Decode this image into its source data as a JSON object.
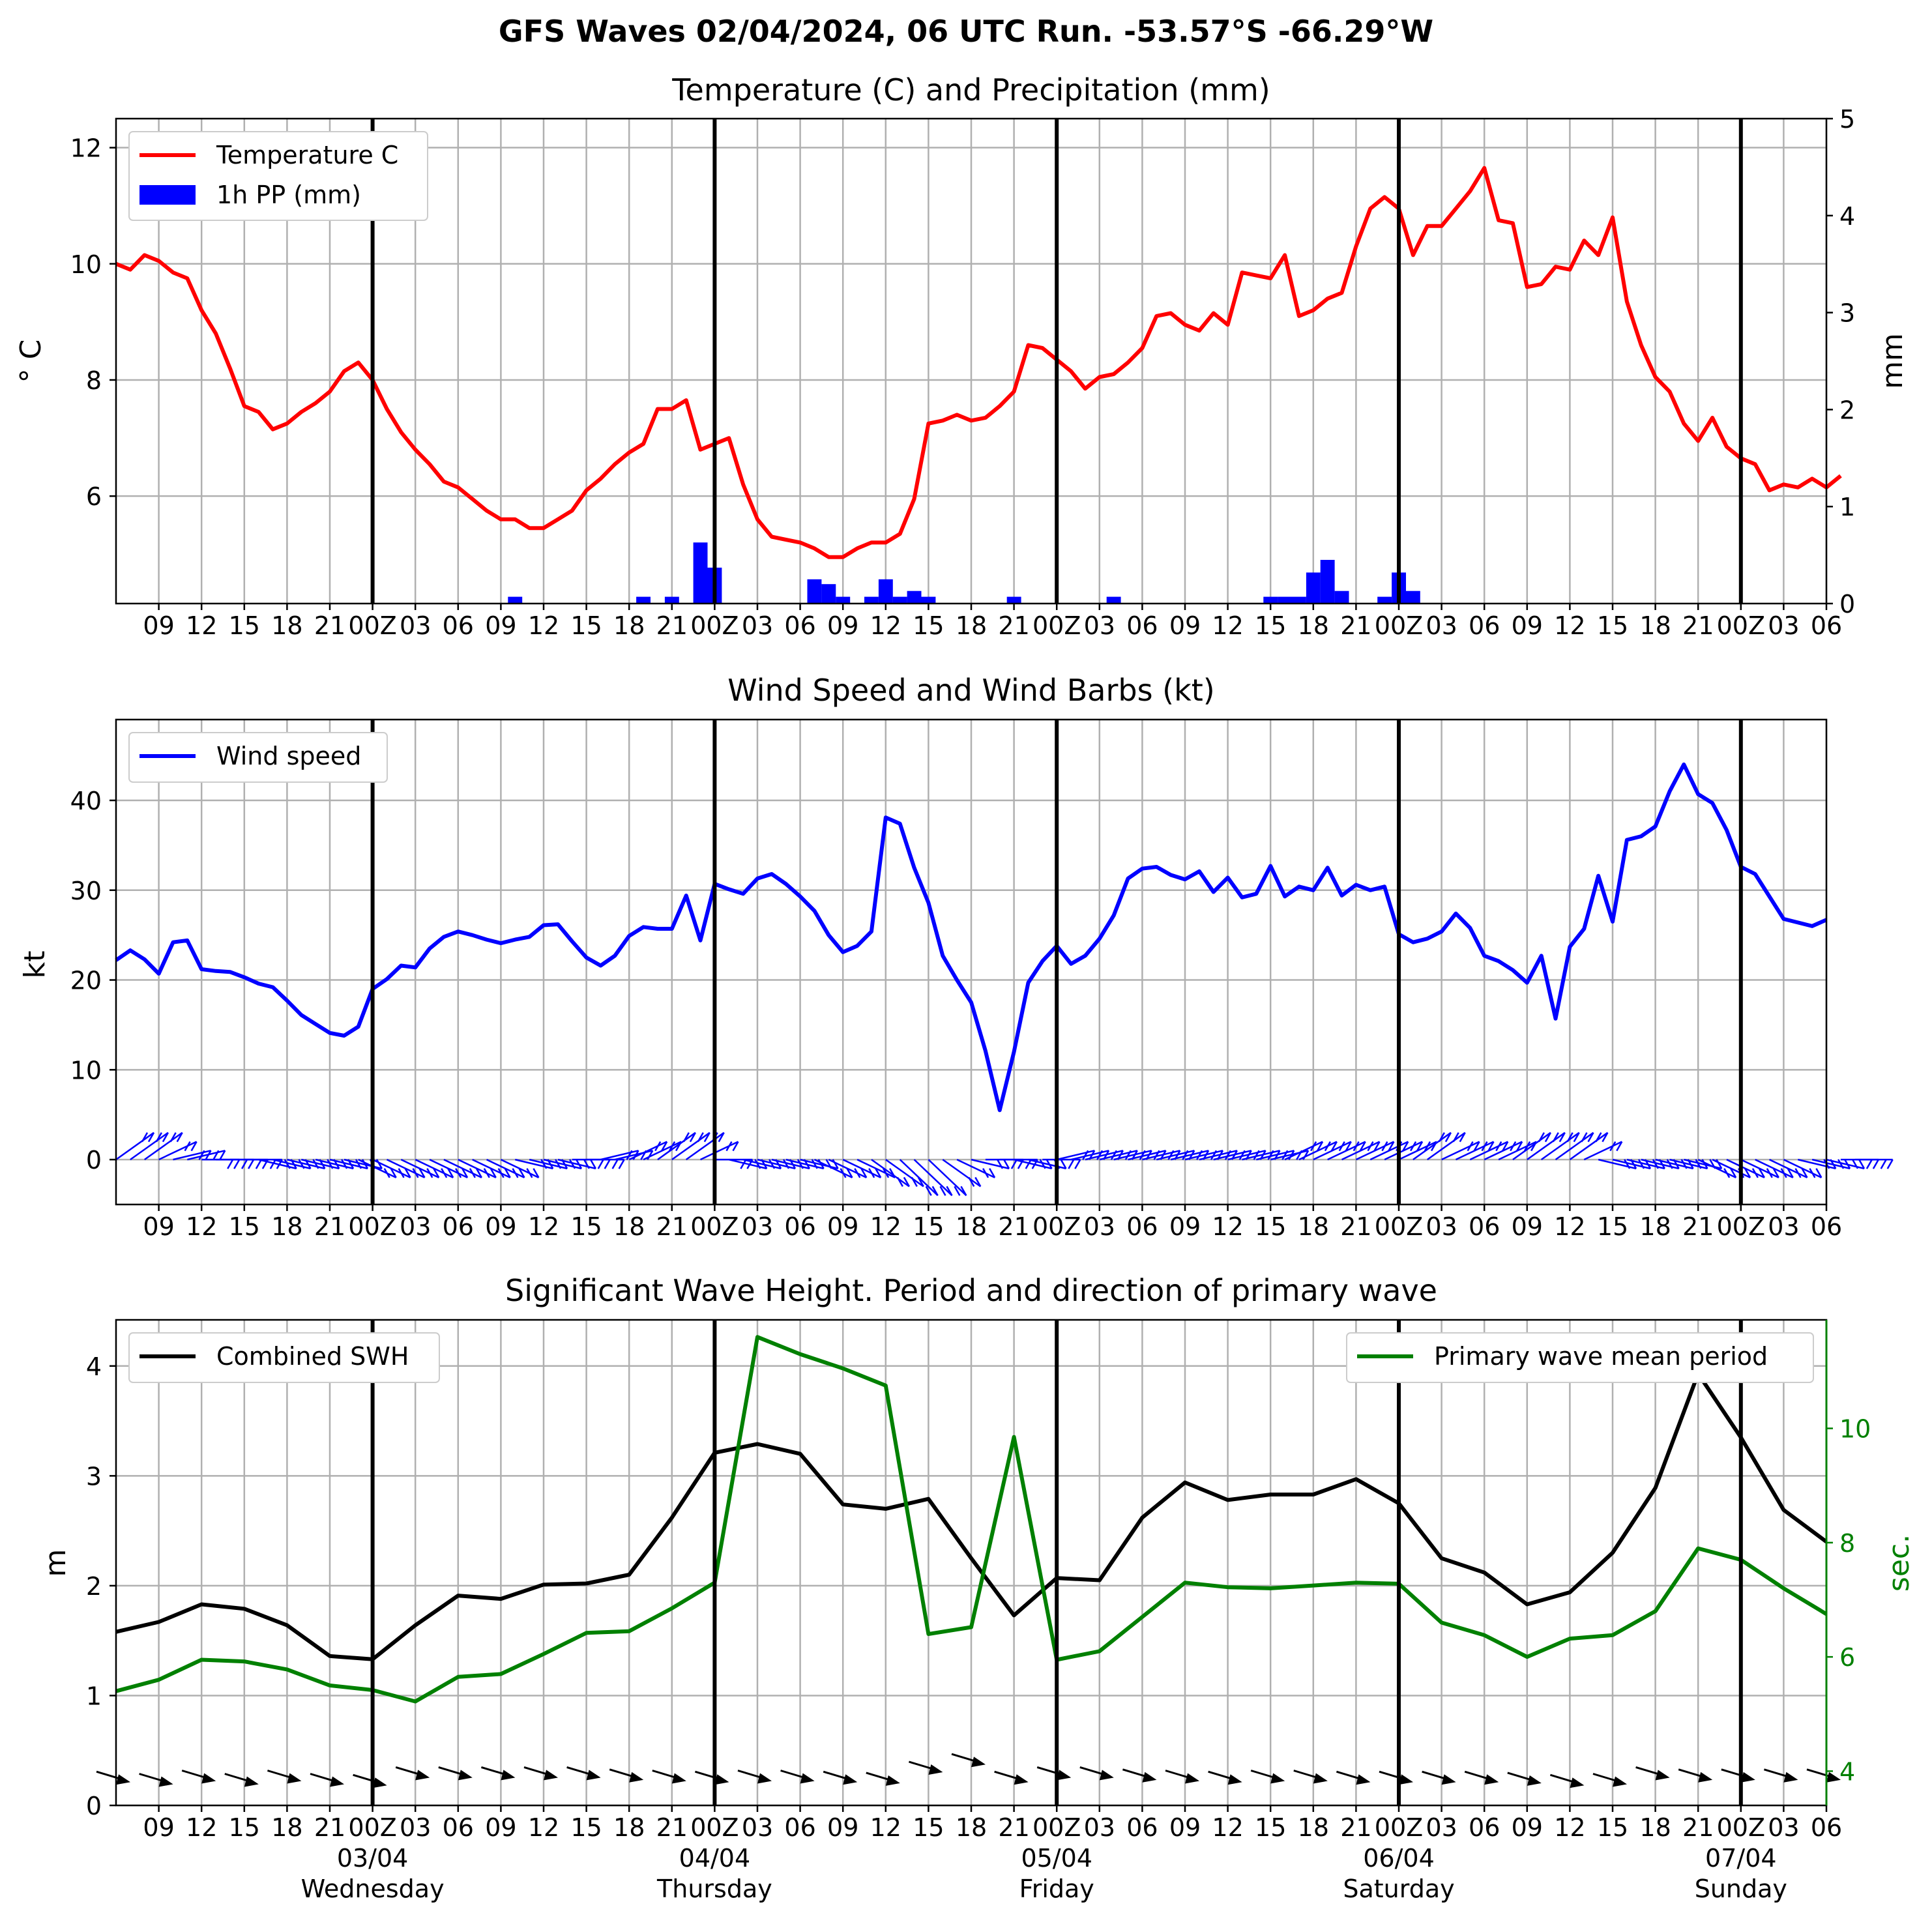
{
  "suptitle": "GFS Waves 02/04/2024, 06 UTC Run. -53.57°S -66.29°W",
  "colors": {
    "temperature": "#ff0000",
    "precip": "#0000ff",
    "wind": "#0000ff",
    "swh": "#000000",
    "period": "#008000",
    "grid": "#b0b0b0",
    "day_line": "#000000"
  },
  "hour_ticks": [
    "09",
    "12",
    "15",
    "18",
    "21",
    "00Z",
    "03",
    "06",
    "09",
    "12",
    "15",
    "18",
    "21",
    "00Z",
    "03",
    "06",
    "09",
    "12",
    "15",
    "18",
    "21",
    "00Z",
    "03",
    "06",
    "09",
    "12",
    "15",
    "18",
    "21",
    "00Z",
    "03",
    "06",
    "09",
    "12",
    "15",
    "18",
    "21",
    "00Z",
    "03",
    "06"
  ],
  "day_labels": [
    {
      "date": "03/04",
      "weekday": "Wednesday"
    },
    {
      "date": "04/04",
      "weekday": "Thursday"
    },
    {
      "date": "05/04",
      "weekday": "Friday"
    },
    {
      "date": "06/04",
      "weekday": "Saturday"
    },
    {
      "date": "07/04",
      "weekday": "Sunday"
    }
  ],
  "chart_data": [
    {
      "type": "line",
      "title": "Temperature (C) and Precipitation (mm)",
      "xlabel": "",
      "ylabel": "$^\\circ$C",
      "ylabel_display": "° C",
      "y2label": "mm",
      "x_range_hours_utc": [
        "02/04 06",
        "07/04 06"
      ],
      "ylim": [
        4.15,
        12.5
      ],
      "y_ticks": [
        6,
        8,
        10,
        12
      ],
      "y2lim": [
        0,
        5
      ],
      "y2_ticks": [
        0,
        1,
        2,
        3,
        4,
        5
      ],
      "grid": true,
      "legend_position": "upper-left",
      "legend": [
        "Temperature C",
        "1h PP (mm)"
      ],
      "series": [
        {
          "name": "Temperature C",
          "axis": "left",
          "x_step_hours": 1,
          "values": [
            10.0,
            9.9,
            10.15,
            10.05,
            9.85,
            9.75,
            9.2,
            8.8,
            8.2,
            7.55,
            7.45,
            7.15,
            7.25,
            7.45,
            7.6,
            7.8,
            8.15,
            8.3,
            8.0,
            7.5,
            7.1,
            6.8,
            6.55,
            6.25,
            6.15,
            5.95,
            5.75,
            5.6,
            5.6,
            5.45,
            5.45,
            5.6,
            5.75,
            6.1,
            6.3,
            6.55,
            6.75,
            6.9,
            7.5,
            7.5,
            7.65,
            6.8,
            6.9,
            7.0,
            6.2,
            5.6,
            5.3,
            5.25,
            5.2,
            5.1,
            4.95,
            4.95,
            5.1,
            5.2,
            5.2,
            5.35,
            5.95,
            7.25,
            7.3,
            7.4,
            7.3,
            7.35,
            7.55,
            7.8,
            8.6,
            8.55,
            8.35,
            8.15,
            7.85,
            8.05,
            8.1,
            8.3,
            8.55,
            9.1,
            9.15,
            8.95,
            8.85,
            9.15,
            8.95,
            9.85,
            9.8,
            9.75,
            10.15,
            9.1,
            9.2,
            9.4,
            9.5,
            10.3,
            10.95,
            11.15,
            10.95,
            10.15,
            10.65,
            10.65,
            10.95,
            11.25,
            11.65,
            10.75,
            10.7,
            9.6,
            9.65,
            9.95,
            9.9,
            10.4,
            10.15,
            10.8,
            9.35,
            8.6,
            8.05,
            7.8,
            7.25,
            6.95,
            7.35,
            6.85,
            6.65,
            6.55,
            6.1,
            6.2,
            6.15,
            6.3,
            6.15,
            6.35
          ]
        },
        {
          "name": "1h PP (mm)",
          "axis": "right",
          "type": "bar",
          "bars": [
            {
              "hour": 28,
              "value": 0.07
            },
            {
              "hour": 37,
              "value": 0.07
            },
            {
              "hour": 39,
              "value": 0.07
            },
            {
              "hour": 41,
              "value": 0.63
            },
            {
              "hour": 42,
              "value": 0.37
            },
            {
              "hour": 49,
              "value": 0.25
            },
            {
              "hour": 50,
              "value": 0.2
            },
            {
              "hour": 51,
              "value": 0.07
            },
            {
              "hour": 53,
              "value": 0.07
            },
            {
              "hour": 54,
              "value": 0.25
            },
            {
              "hour": 55,
              "value": 0.07
            },
            {
              "hour": 56,
              "value": 0.13
            },
            {
              "hour": 57,
              "value": 0.07
            },
            {
              "hour": 63,
              "value": 0.07
            },
            {
              "hour": 70,
              "value": 0.07
            },
            {
              "hour": 81,
              "value": 0.07
            },
            {
              "hour": 82,
              "value": 0.07
            },
            {
              "hour": 83,
              "value": 0.07
            },
            {
              "hour": 84,
              "value": 0.32
            },
            {
              "hour": 85,
              "value": 0.45
            },
            {
              "hour": 86,
              "value": 0.13
            },
            {
              "hour": 89,
              "value": 0.07
            },
            {
              "hour": 90,
              "value": 0.32
            },
            {
              "hour": 91,
              "value": 0.13
            }
          ]
        }
      ]
    },
    {
      "type": "line",
      "title": "Wind Speed and Wind Barbs (kt)",
      "xlabel": "",
      "ylabel": "kt",
      "ylim": [
        -5,
        49
      ],
      "y_ticks": [
        0,
        10,
        20,
        30,
        40
      ],
      "grid": true,
      "legend_position": "upper-left",
      "legend": [
        "Wind speed"
      ],
      "series": [
        {
          "name": "Wind speed",
          "x_step_hours": 1,
          "values": [
            22.2,
            23.3,
            22.3,
            20.7,
            24.2,
            24.4,
            21.2,
            21.0,
            20.9,
            20.3,
            19.6,
            19.2,
            17.7,
            16.1,
            15.1,
            14.1,
            13.8,
            14.8,
            19.0,
            20.1,
            21.6,
            21.4,
            23.5,
            24.8,
            25.4,
            25.0,
            24.5,
            24.1,
            24.5,
            24.8,
            26.1,
            26.2,
            24.3,
            22.5,
            21.6,
            22.7,
            24.9,
            25.9,
            25.7,
            25.7,
            29.4,
            24.4,
            30.7,
            30.1,
            29.6,
            31.3,
            31.8,
            30.7,
            29.3,
            27.7,
            25.0,
            23.1,
            23.8,
            25.4,
            38.1,
            37.4,
            32.5,
            28.6,
            22.7,
            20.0,
            17.5,
            12.1,
            5.5,
            12.0,
            19.7,
            22.1,
            23.8,
            21.8,
            22.7,
            24.6,
            27.2,
            31.3,
            32.4,
            32.6,
            31.7,
            31.2,
            32.1,
            29.8,
            31.4,
            29.2,
            29.6,
            32.7,
            29.3,
            30.4,
            30.0,
            32.5,
            29.4,
            30.6,
            30.0,
            30.4,
            25.1,
            24.2,
            24.6,
            25.4,
            27.4,
            25.8,
            22.7,
            22.1,
            21.1,
            19.7,
            22.7,
            15.7,
            23.7,
            25.7,
            31.6,
            26.5,
            35.6,
            36.0,
            37.1,
            41.0,
            44.0,
            40.7,
            39.7,
            36.7,
            32.6,
            31.8,
            29.3,
            26.8,
            26.4,
            26.0,
            26.7
          ]
        }
      ],
      "barbs_offset_values": [
        3,
        3,
        3,
        2,
        1,
        1,
        0,
        0,
        0,
        0,
        -1,
        -1,
        -1,
        -1,
        -1,
        -1,
        -1,
        -2,
        -2,
        -2,
        -2,
        -2,
        -2,
        -2,
        -2,
        -2,
        -2,
        -2,
        -1,
        -1,
        -1,
        -1,
        0,
        0,
        1,
        1,
        2,
        2,
        3,
        3,
        3,
        2,
        0,
        -1,
        -1,
        -1,
        -1,
        -1,
        -1,
        -2,
        -2,
        -2,
        -2,
        -3,
        -3,
        -4,
        -4,
        -4,
        -3,
        -2,
        -1,
        0,
        0,
        -1,
        -1,
        0,
        1,
        1,
        1,
        1,
        1,
        1,
        1,
        1,
        1,
        1,
        1,
        1,
        1,
        1,
        1,
        1,
        2,
        2,
        2,
        2,
        2,
        2,
        2,
        2,
        2,
        3,
        3,
        2,
        2,
        2,
        2,
        2,
        3,
        3,
        3,
        3,
        3,
        2,
        -1,
        -1,
        -1,
        -1,
        -1,
        -1,
        -1,
        -2,
        -2,
        -2,
        -2,
        -2,
        -2,
        -2,
        -1,
        -1,
        -1,
        0,
        0
      ]
    },
    {
      "type": "line",
      "title": "Significant Wave Height. Period and direction of primary wave",
      "xlabel": "",
      "ylabel": "m",
      "y2label": "sec.",
      "ylim": [
        0,
        4.42
      ],
      "y_ticks": [
        0,
        1,
        2,
        3,
        4
      ],
      "y2lim": [
        3.4,
        11.9
      ],
      "y2_ticks": [
        4,
        6,
        8,
        10
      ],
      "grid": true,
      "legend_position_left": "upper-left",
      "legend_position_right": "upper-right",
      "legend": [
        "Combined SWH",
        "Primary wave mean period"
      ],
      "series": [
        {
          "name": "Combined SWH",
          "axis": "left",
          "x_step_hours": 3,
          "values": [
            1.58,
            1.67,
            1.83,
            1.79,
            1.64,
            1.36,
            1.33,
            1.64,
            1.91,
            1.88,
            2.01,
            2.02,
            2.1,
            2.62,
            3.21,
            3.29,
            3.2,
            2.74,
            2.7,
            2.79,
            2.25,
            1.73,
            2.07,
            2.05,
            2.62,
            2.94,
            2.78,
            2.83,
            2.83,
            2.97,
            2.75,
            2.25,
            2.12,
            1.83,
            1.94,
            2.3,
            2.89,
            3.93,
            3.35,
            2.69,
            2.4
          ]
        },
        {
          "name": "Primary wave mean period",
          "axis": "right",
          "x_step_hours": 3,
          "values": [
            5.4,
            5.6,
            5.95,
            5.92,
            5.78,
            5.5,
            5.42,
            5.22,
            5.65,
            5.7,
            6.05,
            6.42,
            6.45,
            6.85,
            7.3,
            11.6,
            11.3,
            11.05,
            10.75,
            6.4,
            6.52,
            9.85,
            5.95,
            6.1,
            6.7,
            7.3,
            7.22,
            7.2,
            7.25,
            7.3,
            7.28,
            6.6,
            6.38,
            6.0,
            6.32,
            6.38,
            6.8,
            7.9,
            7.7,
            7.2,
            6.75
          ]
        }
      ],
      "arrow_offset_values": [
        0.26,
        0.24,
        0.27,
        0.24,
        0.27,
        0.24,
        0.23,
        0.3,
        0.3,
        0.3,
        0.3,
        0.3,
        0.28,
        0.27,
        0.26,
        0.27,
        0.27,
        0.26,
        0.25,
        0.35,
        0.42,
        0.26,
        0.3,
        0.3,
        0.28,
        0.27,
        0.26,
        0.27,
        0.27,
        0.26,
        0.26,
        0.26,
        0.26,
        0.25,
        0.23,
        0.24,
        0.3,
        0.28,
        0.28,
        0.28,
        0.28
      ]
    }
  ]
}
